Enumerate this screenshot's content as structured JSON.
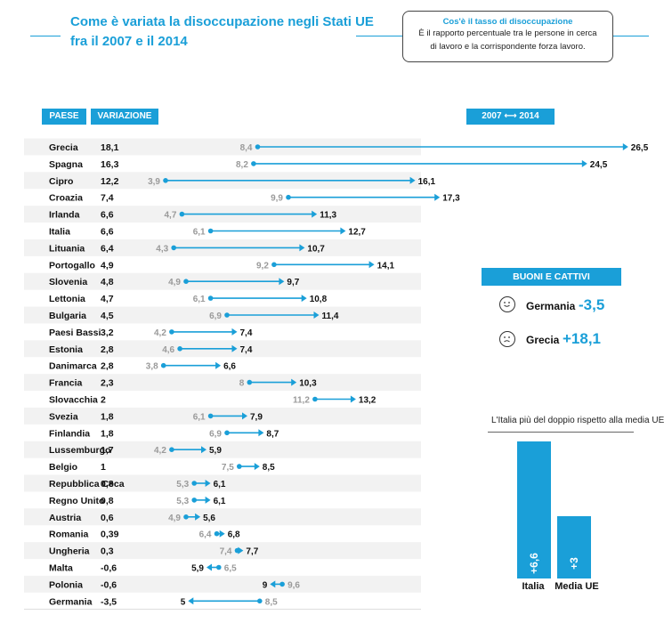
{
  "header": {
    "title_line1": "Come è variata la disoccupazione negli Stati UE",
    "title_line2": "fra il 2007 e il 2014"
  },
  "info_box": {
    "title": "Cos'è il tasso di disoccupazione",
    "line1": "È il rapporto percentuale tra le persone in cerca",
    "line2": "di lavoro e la corrispondente forza lavoro."
  },
  "columns": {
    "paese": "PAESE",
    "variazione": "VARIAZIONE",
    "years": "2007 ⟷ 2014"
  },
  "colors": {
    "accent": "#1a9fd8",
    "row_shade": "#f2f2f2",
    "start_label": "#9a9a9a"
  },
  "chart_data": [
    {
      "type": "dumbbell",
      "title": "Come è variata la disoccupazione negli Stati UE fra il 2007 e il 2014",
      "xlabel": "",
      "ylabel": "",
      "series_names": [
        "2007",
        "2014"
      ],
      "rows": [
        {
          "country": "Grecia",
          "change": "18,1",
          "v2007": 8.4,
          "v2014": 26.5,
          "l2007": "8,4",
          "l2014": "26,5"
        },
        {
          "country": "Spagna",
          "change": "16,3",
          "v2007": 8.2,
          "v2014": 24.5,
          "l2007": "8,2",
          "l2014": "24,5"
        },
        {
          "country": "Cipro",
          "change": "12,2",
          "v2007": 3.9,
          "v2014": 16.1,
          "l2007": "3,9",
          "l2014": "16,1"
        },
        {
          "country": "Croazia",
          "change": "7,4",
          "v2007": 9.9,
          "v2014": 17.3,
          "l2007": "9,9",
          "l2014": "17,3"
        },
        {
          "country": "Irlanda",
          "change": "6,6",
          "v2007": 4.7,
          "v2014": 11.3,
          "l2007": "4,7",
          "l2014": "11,3"
        },
        {
          "country": "Italia",
          "change": "6,6",
          "v2007": 6.1,
          "v2014": 12.7,
          "l2007": "6,1",
          "l2014": "12,7"
        },
        {
          "country": "Lituania",
          "change": "6,4",
          "v2007": 4.3,
          "v2014": 10.7,
          "l2007": "4,3",
          "l2014": "10,7"
        },
        {
          "country": "Portogallo",
          "change": "4,9",
          "v2007": 9.2,
          "v2014": 14.1,
          "l2007": "9,2",
          "l2014": "14,1"
        },
        {
          "country": "Slovenia",
          "change": "4,8",
          "v2007": 4.9,
          "v2014": 9.7,
          "l2007": "4,9",
          "l2014": "9,7"
        },
        {
          "country": "Lettonia",
          "change": "4,7",
          "v2007": 6.1,
          "v2014": 10.8,
          "l2007": "6,1",
          "l2014": "10,8"
        },
        {
          "country": "Bulgaria",
          "change": "4,5",
          "v2007": 6.9,
          "v2014": 11.4,
          "l2007": "6,9",
          "l2014": "11,4"
        },
        {
          "country": "Paesi Bassi",
          "change": "3,2",
          "v2007": 4.2,
          "v2014": 7.4,
          "l2007": "4,2",
          "l2014": "7,4"
        },
        {
          "country": "Estonia",
          "change": "2,8",
          "v2007": 4.6,
          "v2014": 7.4,
          "l2007": "4,6",
          "l2014": "7,4"
        },
        {
          "country": "Danimarca",
          "change": "2,8",
          "v2007": 3.8,
          "v2014": 6.6,
          "l2007": "3,8",
          "l2014": "6,6"
        },
        {
          "country": "Francia",
          "change": "2,3",
          "v2007": 8.0,
          "v2014": 10.3,
          "l2007": "8",
          "l2014": "10,3"
        },
        {
          "country": "Slovacchia",
          "change": "2",
          "v2007": 11.2,
          "v2014": 13.2,
          "l2007": "11,2",
          "l2014": "13,2"
        },
        {
          "country": "Svezia",
          "change": "1,8",
          "v2007": 6.1,
          "v2014": 7.9,
          "l2007": "6,1",
          "l2014": "7,9"
        },
        {
          "country": "Finlandia",
          "change": "1,8",
          "v2007": 6.9,
          "v2014": 8.7,
          "l2007": "6,9",
          "l2014": "8,7"
        },
        {
          "country": "Lussemburgo",
          "change": "1,7",
          "v2007": 4.2,
          "v2014": 5.9,
          "l2007": "4,2",
          "l2014": "5,9"
        },
        {
          "country": "Belgio",
          "change": "1",
          "v2007": 7.5,
          "v2014": 8.5,
          "l2007": "7,5",
          "l2014": "8,5"
        },
        {
          "country": "Repubblica Ceca",
          "change": "0,8",
          "v2007": 5.3,
          "v2014": 6.1,
          "l2007": "5,3",
          "l2014": "6,1"
        },
        {
          "country": "Regno Unito",
          "change": "0,8",
          "v2007": 5.3,
          "v2014": 6.1,
          "l2007": "5,3",
          "l2014": "6,1"
        },
        {
          "country": "Austria",
          "change": "0,6",
          "v2007": 4.9,
          "v2014": 5.6,
          "l2007": "4,9",
          "l2014": "5,6"
        },
        {
          "country": "Romania",
          "change": "0,39",
          "v2007": 6.4,
          "v2014": 6.8,
          "l2007": "6,4",
          "l2014": "6,8"
        },
        {
          "country": "Ungheria",
          "change": "0,3",
          "v2007": 7.4,
          "v2014": 7.7,
          "l2007": "7,4",
          "l2014": "7,7"
        },
        {
          "country": "Malta",
          "change": "-0,6",
          "v2007": 6.5,
          "v2014": 5.9,
          "l2007": "6,5",
          "l2014": "5,9"
        },
        {
          "country": "Polonia",
          "change": "-0,6",
          "v2007": 9.6,
          "v2014": 9.0,
          "l2007": "9,6",
          "l2014": "9"
        },
        {
          "country": "Germania",
          "change": "-3,5",
          "v2007": 8.5,
          "v2014": 5.0,
          "l2007": "8,5",
          "l2014": "5"
        }
      ]
    },
    {
      "type": "bar",
      "title": "L'Italia più del doppio rispetto alla media UE",
      "categories": [
        "Italia",
        "Media UE"
      ],
      "values": [
        6.6,
        3.0
      ],
      "labels": [
        "+6,6",
        "+3"
      ],
      "xlabel": "",
      "ylabel": ""
    }
  ],
  "highlight": {
    "title": "BUONI E CATTIVI",
    "good": {
      "label": "Germania",
      "value": "-3,5",
      "icon": "smile-icon"
    },
    "bad": {
      "label": "Grecia",
      "value": "+18,1",
      "icon": "frown-icon"
    }
  }
}
